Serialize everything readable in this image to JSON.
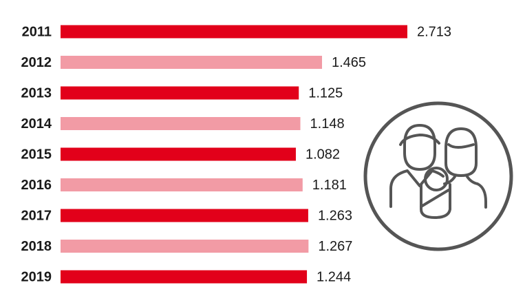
{
  "chart_data": {
    "type": "bar",
    "orientation": "horizontal",
    "categories": [
      "2011",
      "2012",
      "2013",
      "2014",
      "2015",
      "2016",
      "2017",
      "2018",
      "2019"
    ],
    "values": [
      2713,
      1465,
      1125,
      1148,
      1082,
      1181,
      1263,
      1267,
      1244
    ],
    "value_labels": [
      "2.713",
      "1.465",
      "1.125",
      "1.148",
      "1.082",
      "1.181",
      "1.263",
      "1.267",
      "1.244"
    ],
    "colors": [
      "#e2001a",
      "#f29ba5",
      "#e2001a",
      "#f29ba5",
      "#e2001a",
      "#f29ba5",
      "#e2001a",
      "#f29ba5",
      "#e2001a"
    ],
    "xlim": [
      -2360,
      2713
    ]
  }
}
